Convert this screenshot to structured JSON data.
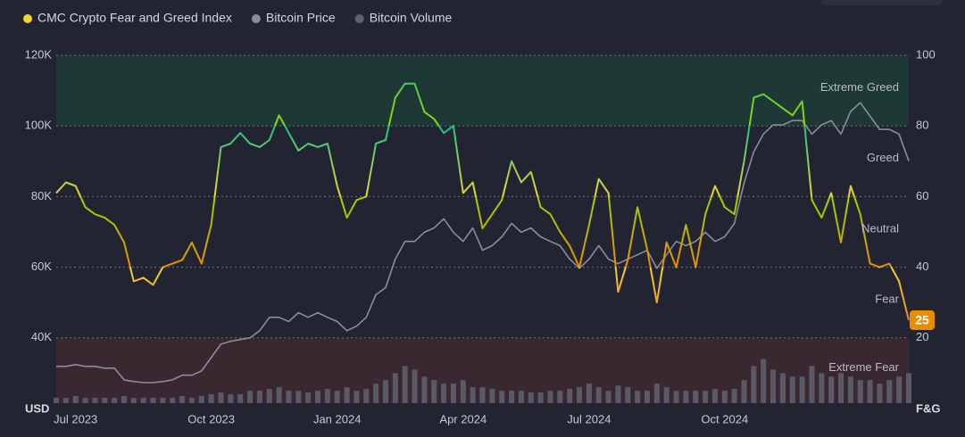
{
  "chart_data": {
    "type": "line",
    "categories": [
      null,
      null,
      "Jul 2023",
      null,
      null,
      null,
      null,
      null,
      null,
      null,
      null,
      null,
      null,
      null,
      null,
      null,
      "Oct 2023",
      null,
      null,
      null,
      null,
      null,
      null,
      null,
      null,
      null,
      null,
      null,
      null,
      "Jan 2024",
      null,
      null,
      null,
      null,
      null,
      null,
      null,
      null,
      null,
      null,
      null,
      null,
      "Apr 2024",
      null,
      null,
      null,
      null,
      null,
      null,
      null,
      null,
      null,
      null,
      null,
      null,
      "Jul 2024",
      null,
      null,
      null,
      null,
      null,
      null,
      null,
      null,
      null,
      null,
      null,
      null,
      null,
      "Oct 2024",
      null,
      null,
      null,
      null,
      null,
      null,
      null,
      null,
      null,
      null,
      null,
      null,
      null,
      null,
      null,
      null,
      null,
      null,
      null
    ],
    "series": [
      {
        "name": "CMC Crypto Fear and Greed Index",
        "color": "#f3d42f",
        "axis": "y2",
        "values": [
          61,
          64,
          63,
          57,
          55,
          54,
          52,
          47,
          36,
          37,
          35,
          40,
          41,
          42,
          47,
          41,
          52,
          74,
          75,
          78,
          75,
          74,
          76,
          83,
          78,
          73,
          75,
          74,
          75,
          63,
          54,
          59,
          60,
          75,
          76,
          88,
          92,
          92,
          84,
          82,
          78,
          80,
          61,
          64,
          51,
          55,
          59,
          70,
          64,
          67,
          57,
          55,
          50,
          46,
          40,
          52,
          65,
          61,
          33,
          42,
          57,
          45,
          30,
          47,
          40,
          52,
          40,
          55,
          63,
          57,
          55,
          70,
          88,
          89,
          87,
          85,
          83,
          87,
          59,
          54,
          61,
          47,
          63,
          55,
          41,
          40,
          41,
          36,
          25
        ]
      },
      {
        "name": "Bitcoin Price",
        "color": "#8a8d98",
        "axis": "y",
        "values": [
          31900,
          31900,
          32400,
          31900,
          31900,
          31400,
          31400,
          28100,
          27600,
          27300,
          27300,
          27600,
          28100,
          29400,
          29400,
          30600,
          34400,
          38200,
          39000,
          39500,
          40000,
          42000,
          45800,
          45800,
          44600,
          47100,
          45800,
          47100,
          45800,
          44600,
          42000,
          43300,
          45800,
          52200,
          54200,
          62300,
          67300,
          67300,
          69900,
          71100,
          73700,
          69900,
          67300,
          71100,
          64800,
          66100,
          68600,
          72400,
          69900,
          71100,
          68600,
          67300,
          66100,
          62300,
          59700,
          62300,
          66100,
          62300,
          61000,
          62300,
          63500,
          64800,
          59700,
          63500,
          67300,
          66100,
          67300,
          69900,
          67300,
          68600,
          72400,
          83800,
          92700,
          97700,
          100300,
          100300,
          101500,
          101500,
          97700,
          100300,
          101500,
          97700,
          104100,
          106600,
          102800,
          99000,
          99000,
          97700,
          90100
        ]
      },
      {
        "name": "Bitcoin Volume",
        "color": "#5f6370",
        "axis": "y2",
        "type": "bar",
        "values": [
          3,
          3,
          3.5,
          3,
          3,
          3,
          3,
          3.5,
          3,
          3,
          3,
          3,
          3,
          3.5,
          3,
          3.5,
          4,
          4.5,
          4,
          4,
          5,
          5,
          5.5,
          6,
          5,
          5,
          4.5,
          5,
          5.5,
          5,
          6,
          5,
          5.5,
          7,
          8,
          10,
          12,
          11,
          9,
          8,
          7,
          7,
          8,
          6,
          6,
          5.5,
          5,
          5,
          5,
          4.5,
          4.5,
          5,
          5,
          5.5,
          6,
          7,
          6,
          5,
          6.5,
          6,
          5,
          5,
          7,
          6,
          5,
          5,
          5,
          5,
          5.5,
          5,
          5.5,
          8,
          12,
          14,
          11,
          10,
          9,
          9,
          12,
          10,
          9,
          10,
          9,
          8,
          8,
          7,
          8,
          9,
          10
        ]
      }
    ],
    "ylabel": "USD",
    "y2label": "F&G",
    "ylim": [
      21500,
      120000
    ],
    "yticks": [
      {
        "value": 40000,
        "label": "40K"
      },
      {
        "value": 60000,
        "label": "60K"
      },
      {
        "value": 80000,
        "label": "80K"
      },
      {
        "value": 100000,
        "label": "100K"
      },
      {
        "value": 120000,
        "label": "120K"
      }
    ],
    "y2lim": [
      1.5,
      100
    ],
    "y2ticks": [
      20,
      40,
      60,
      80,
      100
    ],
    "grid": true,
    "zones": [
      {
        "label": "Extreme Fear",
        "from": 0,
        "to": 20,
        "color": "#ea6a2f",
        "fill": "#3a2831"
      },
      {
        "label": "Fear",
        "from": 20,
        "to": 40,
        "color": "#ea8c00",
        "fill": null
      },
      {
        "label": "Neutral",
        "from": 40,
        "to": 60,
        "color": "#f3d42f",
        "fill": null
      },
      {
        "label": "Greed",
        "from": 60,
        "to": 80,
        "color": "#93d900",
        "fill": null
      },
      {
        "label": "Extreme Greed",
        "from": 80,
        "to": 100,
        "color": "#16c784",
        "fill": "#1d3835"
      }
    ],
    "legend": "top-left"
  }
}
